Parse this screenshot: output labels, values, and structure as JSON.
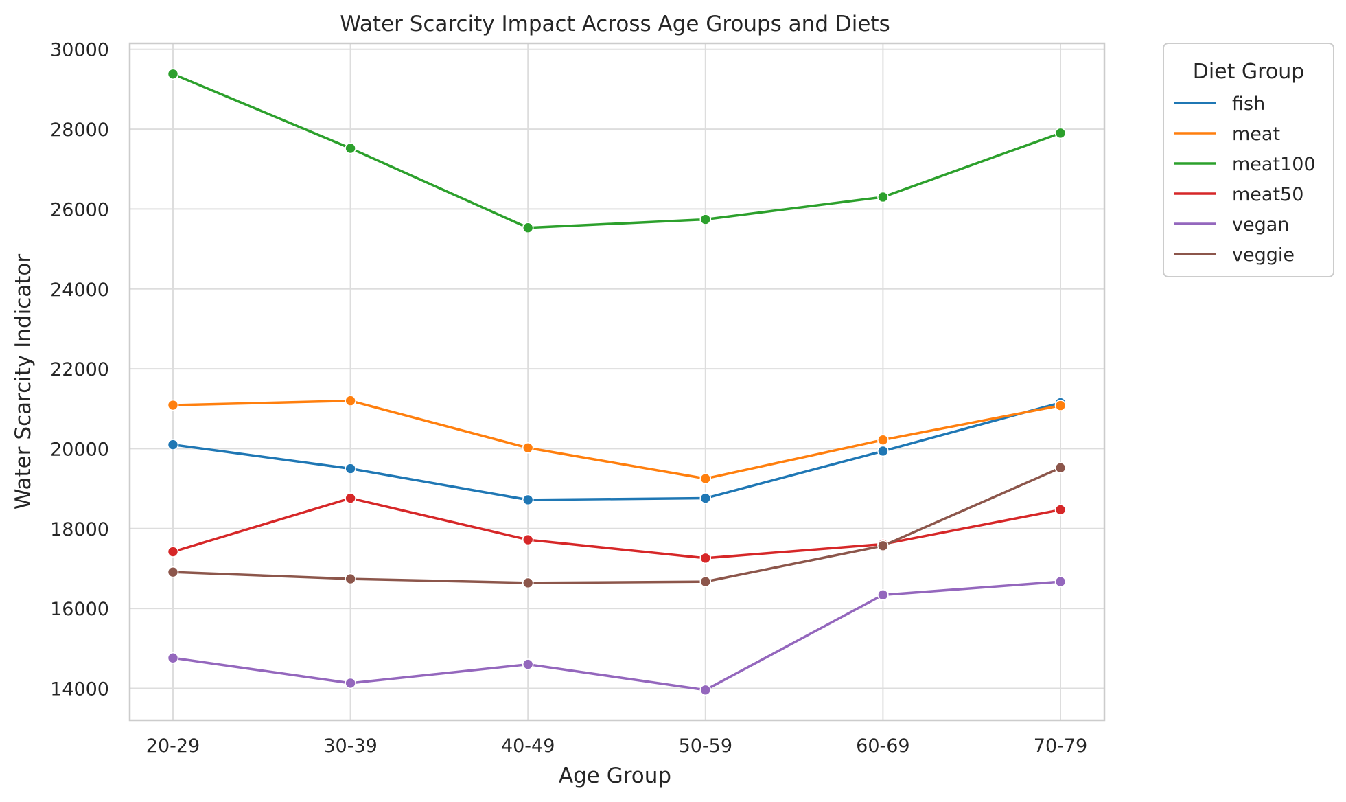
{
  "chart_data": {
    "type": "line",
    "title": "Water Scarcity Impact Across Age Groups and Diets",
    "xlabel": "Age Group",
    "ylabel": "Water Scarcity Indicator",
    "categories": [
      "20-29",
      "30-39",
      "40-49",
      "50-59",
      "60-69",
      "70-79"
    ],
    "ylim": [
      13200,
      30150
    ],
    "yticks": [
      14000,
      16000,
      18000,
      20000,
      22000,
      24000,
      26000,
      28000,
      30000
    ],
    "grid": true,
    "legend": {
      "title": "Diet Group",
      "placement": "outside-top-right"
    },
    "series": [
      {
        "name": "fish",
        "color": "#1f77b4",
        "values": [
          20100,
          19500,
          18720,
          18760,
          19940,
          21150
        ]
      },
      {
        "name": "meat",
        "color": "#ff7f0e",
        "values": [
          21090,
          21200,
          20020,
          19250,
          20220,
          21080
        ]
      },
      {
        "name": "meat100",
        "color": "#2ca02c",
        "values": [
          29380,
          27520,
          25530,
          25740,
          26300,
          27900
        ]
      },
      {
        "name": "meat50",
        "color": "#d62728",
        "values": [
          17420,
          18760,
          17720,
          17260,
          17610,
          18470
        ]
      },
      {
        "name": "vegan",
        "color": "#9467bd",
        "values": [
          14760,
          14130,
          14600,
          13960,
          16340,
          16670
        ]
      },
      {
        "name": "veggie",
        "color": "#8c564b",
        "values": [
          16910,
          16740,
          16640,
          16670,
          17570,
          19520
        ]
      }
    ]
  }
}
